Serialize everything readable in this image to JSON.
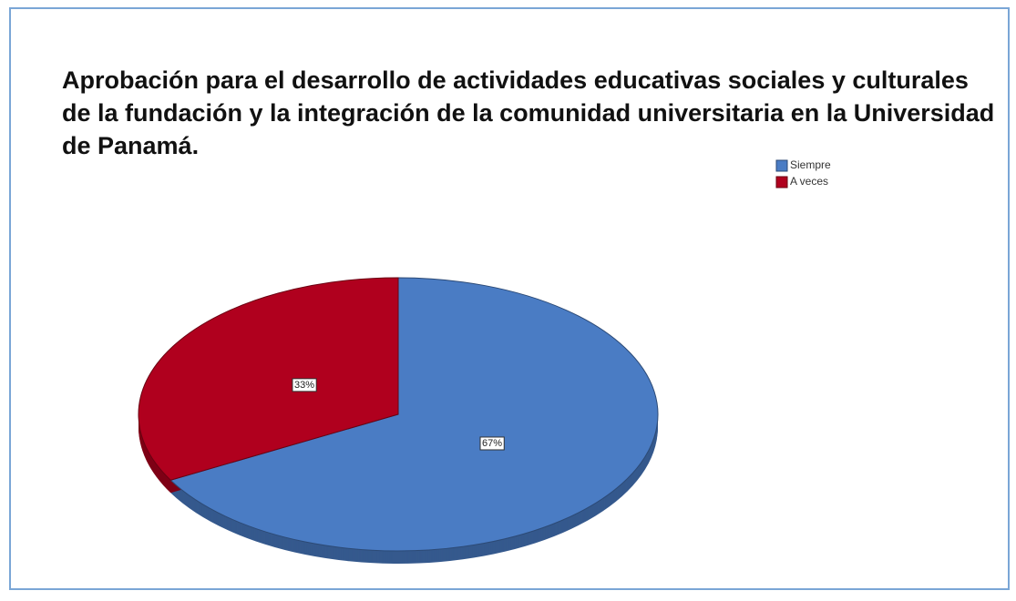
{
  "chart_data": {
    "type": "pie",
    "title": "Aprobación para el desarrollo de actividades educativas sociales y culturales de la fundación y la integración de la comunidad universitaria en la Universidad de Panamá.",
    "categories": [
      "Siempre",
      "A veces"
    ],
    "values": [
      67,
      33
    ],
    "value_labels": [
      "67%",
      "33%"
    ],
    "colors": [
      "#4a7cc4",
      "#b0001e"
    ],
    "legend": "top-right"
  }
}
